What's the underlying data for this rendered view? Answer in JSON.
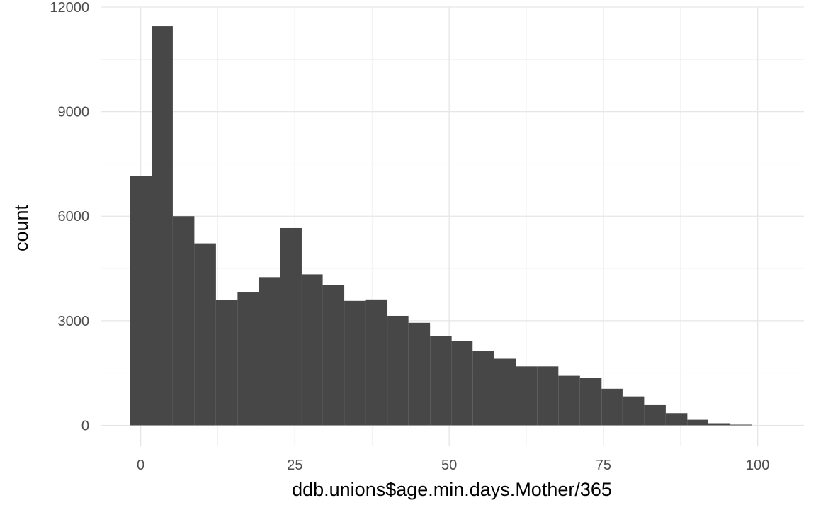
{
  "chart_data": {
    "type": "bar",
    "title": "",
    "xlabel": "ddb.unions$age.min.days.Mother/365",
    "ylabel": "count",
    "xlim": [
      -6.5,
      107.5
    ],
    "ylim": [
      -600,
      12000
    ],
    "x_ticks": [
      0,
      25,
      50,
      75,
      100
    ],
    "x_tick_labels": [
      "0",
      "25",
      "50",
      "75",
      "100"
    ],
    "y_ticks": [
      0,
      3000,
      6000,
      9000,
      12000
    ],
    "y_tick_labels": [
      "0",
      "3000",
      "6000",
      "9000",
      "12000"
    ],
    "grid": true,
    "legend": "none",
    "bar_color": "#474747",
    "grid_major_color": "#e6e6e6",
    "grid_minor_color": "#f0f0f0",
    "bins": [
      {
        "x0": -1.7,
        "x1": 1.8,
        "count": 7150
      },
      {
        "x0": 1.8,
        "x1": 5.2,
        "count": 11450
      },
      {
        "x0": 5.2,
        "x1": 8.7,
        "count": 6000
      },
      {
        "x0": 8.7,
        "x1": 12.2,
        "count": 5220
      },
      {
        "x0": 12.2,
        "x1": 15.7,
        "count": 3600
      },
      {
        "x0": 15.7,
        "x1": 19.1,
        "count": 3830
      },
      {
        "x0": 19.1,
        "x1": 22.6,
        "count": 4250
      },
      {
        "x0": 22.6,
        "x1": 26.1,
        "count": 5660
      },
      {
        "x0": 26.1,
        "x1": 29.5,
        "count": 4330
      },
      {
        "x0": 29.5,
        "x1": 33.0,
        "count": 4020
      },
      {
        "x0": 33.0,
        "x1": 36.5,
        "count": 3570
      },
      {
        "x0": 36.5,
        "x1": 40.0,
        "count": 3610
      },
      {
        "x0": 40.0,
        "x1": 43.4,
        "count": 3140
      },
      {
        "x0": 43.4,
        "x1": 46.9,
        "count": 2940
      },
      {
        "x0": 46.9,
        "x1": 50.4,
        "count": 2550
      },
      {
        "x0": 50.4,
        "x1": 53.8,
        "count": 2410
      },
      {
        "x0": 53.8,
        "x1": 57.3,
        "count": 2130
      },
      {
        "x0": 57.3,
        "x1": 60.8,
        "count": 1910
      },
      {
        "x0": 60.8,
        "x1": 64.3,
        "count": 1690
      },
      {
        "x0": 64.3,
        "x1": 67.7,
        "count": 1690
      },
      {
        "x0": 67.7,
        "x1": 71.2,
        "count": 1420
      },
      {
        "x0": 71.2,
        "x1": 74.7,
        "count": 1370
      },
      {
        "x0": 74.7,
        "x1": 78.1,
        "count": 1050
      },
      {
        "x0": 78.1,
        "x1": 81.6,
        "count": 830
      },
      {
        "x0": 81.6,
        "x1": 85.1,
        "count": 580
      },
      {
        "x0": 85.1,
        "x1": 88.6,
        "count": 350
      },
      {
        "x0": 88.6,
        "x1": 92.0,
        "count": 160
      },
      {
        "x0": 92.0,
        "x1": 95.5,
        "count": 60
      },
      {
        "x0": 95.5,
        "x1": 99.0,
        "count": 20
      }
    ]
  }
}
